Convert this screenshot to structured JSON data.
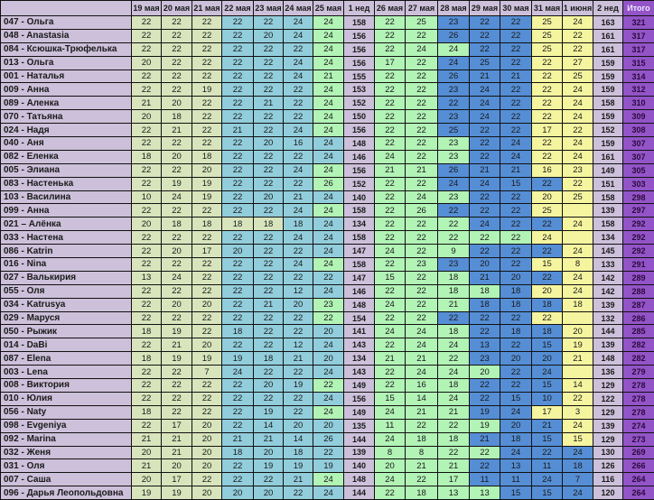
{
  "colors": {
    "Y": "#d8e4bc",
    "T": "#92cddc",
    "G": "#b2f3b6",
    "B": "#558ed5",
    "L": "#f5f5a0",
    "week": "#ccc0da",
    "total": "#9354c8"
  },
  "headers": [
    "",
    "19 мая",
    "20 мая",
    "21 мая",
    "22 мая",
    "23 мая",
    "24 мая",
    "25 мая",
    "1 нед",
    "26 мая",
    "27 мая",
    "28 мая",
    "29 мая",
    "30 мая",
    "31 мая",
    "1 июня",
    "2 нед",
    "Итого"
  ],
  "rows": [
    {
      "name": "047 - Ольга",
      "d": [
        "22",
        "22",
        "22",
        "22",
        "22",
        "24",
        "24",
        "22",
        "25",
        "23",
        "22",
        "22",
        "25",
        "24"
      ],
      "w1": "158",
      "w2": "163",
      "total": "321",
      "c": "YYYTTTGGGBBBLL"
    },
    {
      "name": "048 - Anastasia",
      "d": [
        "22",
        "22",
        "22",
        "22",
        "20",
        "24",
        "24",
        "22",
        "22",
        "26",
        "22",
        "22",
        "25",
        "22"
      ],
      "w1": "156",
      "w2": "161",
      "total": "317",
      "c": "YYYTTTGGGBBBLL"
    },
    {
      "name": "084 - Ксюшка-Трюфелька",
      "d": [
        "22",
        "22",
        "22",
        "22",
        "22",
        "22",
        "24",
        "22",
        "24",
        "24",
        "22",
        "22",
        "25",
        "22"
      ],
      "w1": "156",
      "w2": "161",
      "total": "317",
      "c": "YYYTTTGGGGBBLL"
    },
    {
      "name": "013 - Ольга",
      "d": [
        "20",
        "22",
        "22",
        "22",
        "22",
        "24",
        "24",
        "17",
        "22",
        "24",
        "25",
        "22",
        "22",
        "27"
      ],
      "w1": "156",
      "w2": "159",
      "total": "315",
      "c": "YYYTTTGGGBBBLL"
    },
    {
      "name": "001 - Наталья",
      "d": [
        "22",
        "22",
        "22",
        "22",
        "22",
        "24",
        "21",
        "22",
        "22",
        "26",
        "21",
        "21",
        "22",
        "25"
      ],
      "w1": "155",
      "w2": "159",
      "total": "314",
      "c": "YYYTTTGGGBBBLL"
    },
    {
      "name": "009 - Анна",
      "d": [
        "22",
        "22",
        "19",
        "22",
        "22",
        "22",
        "24",
        "22",
        "22",
        "23",
        "24",
        "22",
        "22",
        "24"
      ],
      "w1": "153",
      "w2": "159",
      "total": "312",
      "c": "YYYTTTGGGBBBLL"
    },
    {
      "name": "089 - Аленка",
      "d": [
        "21",
        "20",
        "22",
        "22",
        "21",
        "22",
        "24",
        "22",
        "22",
        "22",
        "24",
        "22",
        "22",
        "24"
      ],
      "w1": "152",
      "w2": "158",
      "total": "310",
      "c": "YYYTTTGGGBBBLL"
    },
    {
      "name": "070 - Татьяна",
      "d": [
        "20",
        "18",
        "22",
        "22",
        "22",
        "22",
        "24",
        "22",
        "22",
        "23",
        "24",
        "22",
        "22",
        "24"
      ],
      "w1": "150",
      "w2": "159",
      "total": "309",
      "c": "YYYTTTGGGBBBLL"
    },
    {
      "name": "024 - Надя",
      "d": [
        "22",
        "21",
        "22",
        "21",
        "22",
        "24",
        "24",
        "22",
        "22",
        "25",
        "22",
        "22",
        "17",
        "22"
      ],
      "w1": "156",
      "w2": "152",
      "total": "308",
      "c": "YYYTTTGGGBBBLL"
    },
    {
      "name": "040 - Аня",
      "d": [
        "22",
        "22",
        "22",
        "22",
        "20",
        "16",
        "24",
        "22",
        "22",
        "23",
        "22",
        "24",
        "22",
        "24"
      ],
      "w1": "148",
      "w2": "159",
      "total": "307",
      "c": "YYYTTTTGGGBBLL"
    },
    {
      "name": "082 - Еленка",
      "d": [
        "18",
        "20",
        "18",
        "22",
        "22",
        "22",
        "24",
        "24",
        "22",
        "23",
        "22",
        "24",
        "22",
        "24"
      ],
      "w1": "146",
      "w2": "161",
      "total": "307",
      "c": "YYYTTTTGGGBBLL"
    },
    {
      "name": "005 - Элиана",
      "d": [
        "22",
        "22",
        "20",
        "22",
        "22",
        "24",
        "24",
        "21",
        "21",
        "26",
        "21",
        "21",
        "16",
        "23"
      ],
      "w1": "156",
      "w2": "149",
      "total": "305",
      "c": "YYYTTTGGGBBBLL"
    },
    {
      "name": "083 - Настенька",
      "d": [
        "22",
        "19",
        "19",
        "22",
        "22",
        "22",
        "26",
        "22",
        "22",
        "24",
        "24",
        "15",
        "22",
        "22"
      ],
      "w1": "152",
      "w2": "151",
      "total": "303",
      "c": "YYYTTTGGGBBBBL"
    },
    {
      "name": "103 - Василина",
      "d": [
        "10",
        "24",
        "19",
        "22",
        "20",
        "21",
        "24",
        "22",
        "24",
        "23",
        "22",
        "22",
        "20",
        "25"
      ],
      "w1": "140",
      "w2": "158",
      "total": "298",
      "c": "YYYTTTTGGGBBLL"
    },
    {
      "name": "099 - Анна",
      "d": [
        "22",
        "22",
        "22",
        "22",
        "22",
        "24",
        "24",
        "22",
        "26",
        "22",
        "22",
        "22",
        "25",
        ""
      ],
      "w1": "158",
      "w2": "139",
      "total": "297",
      "c": "YYYTTTGGGBBBLL"
    },
    {
      "name": "021 – Алёнка",
      "d": [
        "20",
        "18",
        "18",
        "18",
        "18",
        "18",
        "24",
        "22",
        "22",
        "22",
        "24",
        "22",
        "22",
        "24"
      ],
      "w1": "134",
      "w2": "158",
      "total": "292",
      "c": "YYYYYTTGGGBBBL"
    },
    {
      "name": "033 - Настена",
      "d": [
        "22",
        "22",
        "22",
        "22",
        "22",
        "24",
        "24",
        "22",
        "22",
        "22",
        "22",
        "22",
        "24",
        ""
      ],
      "w1": "158",
      "w2": "134",
      "total": "292",
      "c": "YYYTTTTGGGGGLL"
    },
    {
      "name": "086 - Katrin",
      "d": [
        "22",
        "20",
        "17",
        "20",
        "22",
        "22",
        "24",
        "24",
        "22",
        "9",
        "22",
        "22",
        "22",
        "24"
      ],
      "w1": "147",
      "w2": "145",
      "total": "292",
      "c": "YYYTTTTGGGBBBL"
    },
    {
      "name": "016 - Nina",
      "d": [
        "22",
        "22",
        "22",
        "22",
        "22",
        "24",
        "24",
        "22",
        "23",
        "23",
        "20",
        "22",
        "15",
        "8"
      ],
      "w1": "158",
      "w2": "133",
      "total": "291",
      "c": "YYYTTTGGGBBBLL"
    },
    {
      "name": "027 - Валькирия",
      "d": [
        "13",
        "24",
        "22",
        "22",
        "22",
        "22",
        "22",
        "15",
        "22",
        "18",
        "21",
        "20",
        "22",
        "24"
      ],
      "w1": "147",
      "w2": "142",
      "total": "289",
      "c": "YYYTTTTGGGBBBL"
    },
    {
      "name": "055 - Оля",
      "d": [
        "22",
        "22",
        "22",
        "22",
        "22",
        "12",
        "24",
        "22",
        "22",
        "18",
        "18",
        "18",
        "20",
        "24"
      ],
      "w1": "146",
      "w2": "142",
      "total": "288",
      "c": "YYYTTTTGGGGBLL"
    },
    {
      "name": "034 - Katrusya",
      "d": [
        "22",
        "20",
        "20",
        "22",
        "21",
        "20",
        "23",
        "24",
        "22",
        "21",
        "18",
        "18",
        "18",
        "18"
      ],
      "w1": "148",
      "w2": "139",
      "total": "287",
      "c": "YYYTTTGGGGBBBL"
    },
    {
      "name": "029 - Маруся",
      "d": [
        "22",
        "22",
        "22",
        "22",
        "22",
        "22",
        "22",
        "22",
        "22",
        "22",
        "22",
        "22",
        "22",
        ""
      ],
      "w1": "154",
      "w2": "132",
      "total": "286",
      "c": "YYYTTTGGGBBBLL"
    },
    {
      "name": "050 - Рыжик",
      "d": [
        "18",
        "19",
        "22",
        "18",
        "22",
        "22",
        "20",
        "24",
        "24",
        "18",
        "22",
        "18",
        "18",
        "20"
      ],
      "w1": "141",
      "w2": "144",
      "total": "285",
      "c": "YYYTTTTGGGBBBL"
    },
    {
      "name": "014 - DaBi",
      "d": [
        "22",
        "21",
        "20",
        "22",
        "22",
        "12",
        "24",
        "22",
        "24",
        "24",
        "13",
        "22",
        "15",
        "19"
      ],
      "w1": "143",
      "w2": "139",
      "total": "282",
      "c": "YYYTTTTGGGBBBL"
    },
    {
      "name": "087 - Elena",
      "d": [
        "18",
        "19",
        "19",
        "19",
        "18",
        "21",
        "20",
        "21",
        "21",
        "22",
        "23",
        "20",
        "20",
        "21"
      ],
      "w1": "134",
      "w2": "148",
      "total": "282",
      "c": "YYYTTTTGGGBBBL"
    },
    {
      "name": "003 - Lena",
      "d": [
        "22",
        "22",
        "7",
        "24",
        "22",
        "22",
        "24",
        "22",
        "24",
        "24",
        "20",
        "22",
        "24",
        ""
      ],
      "w1": "143",
      "w2": "136",
      "total": "279",
      "c": "YYYTTTTGGGGBBL"
    },
    {
      "name": "008 - Виктория",
      "d": [
        "22",
        "22",
        "22",
        "22",
        "20",
        "19",
        "22",
        "22",
        "16",
        "18",
        "22",
        "22",
        "15",
        "14"
      ],
      "w1": "149",
      "w2": "129",
      "total": "278",
      "c": "YYYTTTGGGGBBBL"
    },
    {
      "name": "010 - Юлия",
      "d": [
        "22",
        "22",
        "22",
        "22",
        "22",
        "22",
        "24",
        "15",
        "14",
        "24",
        "22",
        "15",
        "10",
        "22"
      ],
      "w1": "156",
      "w2": "122",
      "total": "278",
      "c": "YYYTTTTGGGBBBL"
    },
    {
      "name": "056 - Naty",
      "d": [
        "18",
        "22",
        "22",
        "22",
        "19",
        "22",
        "24",
        "24",
        "21",
        "21",
        "19",
        "24",
        "17",
        "3"
      ],
      "w1": "149",
      "w2": "129",
      "total": "278",
      "c": "YYYTTTGGGGBBLL"
    },
    {
      "name": "098 - Evgeniya",
      "d": [
        "22",
        "17",
        "20",
        "22",
        "14",
        "20",
        "20",
        "11",
        "22",
        "22",
        "19",
        "20",
        "21",
        "24"
      ],
      "w1": "135",
      "w2": "139",
      "total": "274",
      "c": "YYYTTTTGGGGBBL"
    },
    {
      "name": "092 - Marina",
      "d": [
        "21",
        "21",
        "20",
        "21",
        "21",
        "14",
        "26",
        "24",
        "18",
        "18",
        "21",
        "18",
        "15",
        "15"
      ],
      "w1": "144",
      "w2": "129",
      "total": "273",
      "c": "YYYTTTTGGGBBBL"
    },
    {
      "name": "032 - Женя",
      "d": [
        "20",
        "21",
        "20",
        "18",
        "20",
        "18",
        "22",
        "8",
        "8",
        "22",
        "22",
        "24",
        "22",
        "24"
      ],
      "w1": "139",
      "w2": "130",
      "total": "269",
      "c": "YYYTTTTGGGGBBB"
    },
    {
      "name": "031 - Оля",
      "d": [
        "21",
        "20",
        "20",
        "22",
        "19",
        "19",
        "19",
        "20",
        "21",
        "21",
        "22",
        "13",
        "11",
        "18"
      ],
      "w1": "140",
      "w2": "126",
      "total": "266",
      "c": "YYYTTTTGGGBBBB"
    },
    {
      "name": "007 - Саша",
      "d": [
        "20",
        "17",
        "22",
        "22",
        "22",
        "21",
        "24",
        "24",
        "22",
        "17",
        "11",
        "11",
        "24",
        "7"
      ],
      "w1": "148",
      "w2": "116",
      "total": "264",
      "c": "YYYTTTGGGGBBBB"
    },
    {
      "name": "096 - Дарья Леопольдовна",
      "d": [
        "19",
        "19",
        "20",
        "20",
        "20",
        "22",
        "24",
        "22",
        "18",
        "13",
        "13",
        "15",
        "15",
        "24"
      ],
      "w1": "144",
      "w2": "120",
      "total": "264",
      "c": "YYYTTTTGGGGBBB"
    }
  ]
}
